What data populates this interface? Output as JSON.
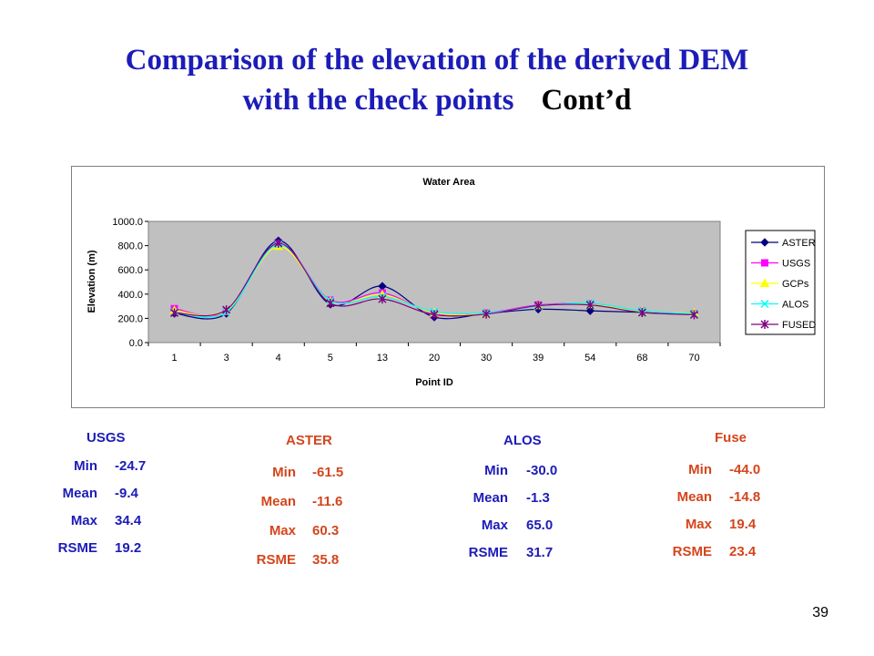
{
  "slide": {
    "title_line1": "Comparison of the elevation of the derived DEM",
    "title_line2": "with the check points",
    "title_suffix": "Cont’d",
    "page_number": "39"
  },
  "chart_data": {
    "type": "line",
    "title": "Water Area",
    "xlabel": "Point ID",
    "ylabel": "Elevation (m)",
    "categories": [
      "1",
      "3",
      "4",
      "5",
      "13",
      "20",
      "30",
      "39",
      "54",
      "68",
      "70"
    ],
    "ylim": [
      0,
      1000
    ],
    "yticks": [
      "0.0",
      "200.0",
      "400.0",
      "600.0",
      "800.0",
      "1000.0"
    ],
    "grid": false,
    "legend_position": "right",
    "plot_background": "#c0c0c0",
    "series": [
      {
        "name": "ASTER",
        "color": "#000080",
        "marker": "diamond",
        "values": [
          240,
          240,
          840,
          315,
          465,
          210,
          240,
          275,
          262,
          250,
          245
        ]
      },
      {
        "name": "USGS",
        "color": "#ff00ff",
        "marker": "square",
        "values": [
          280,
          255,
          815,
          350,
          410,
          240,
          245,
          310,
          320,
          260,
          240
        ]
      },
      {
        "name": "GCPs",
        "color": "#ffff00",
        "marker": "triangle",
        "values": [
          265,
          260,
          795,
          340,
          395,
          245,
          240,
          305,
          315,
          258,
          245
        ]
      },
      {
        "name": "ALOS",
        "color": "#00ffff",
        "marker": "x",
        "values": [
          250,
          250,
          810,
          345,
          380,
          255,
          245,
          300,
          325,
          262,
          238
        ]
      },
      {
        "name": "FUSED",
        "color": "#800080",
        "marker": "star",
        "values": [
          245,
          270,
          820,
          325,
          360,
          230,
          235,
          305,
          310,
          248,
          230
        ]
      }
    ]
  },
  "stats": [
    {
      "title": "USGS",
      "rows": [
        {
          "label": "Min",
          "value": "-24.7"
        },
        {
          "label": "Mean",
          "value": "-9.4"
        },
        {
          "label": "Max",
          "value": "34.4"
        },
        {
          "label": "RSME",
          "value": "19.2"
        }
      ]
    },
    {
      "title": "ASTER",
      "rows": [
        {
          "label": "Min",
          "value": "-61.5"
        },
        {
          "label": "Mean",
          "value": "-11.6"
        },
        {
          "label": "Max",
          "value": "60.3"
        },
        {
          "label": "RSME",
          "value": "35.8"
        }
      ]
    },
    {
      "title": "ALOS",
      "rows": [
        {
          "label": "Min",
          "value": "-30.0"
        },
        {
          "label": "Mean",
          "value": "-1.3"
        },
        {
          "label": "Max",
          "value": "65.0"
        },
        {
          "label": "RSME",
          "value": "31.7"
        }
      ]
    },
    {
      "title": "Fuse",
      "rows": [
        {
          "label": "Min",
          "value": "-44.0"
        },
        {
          "label": "Mean",
          "value": "-14.8"
        },
        {
          "label": "Max",
          "value": "19.4"
        },
        {
          "label": "RSME",
          "value": "23.4"
        }
      ]
    }
  ]
}
